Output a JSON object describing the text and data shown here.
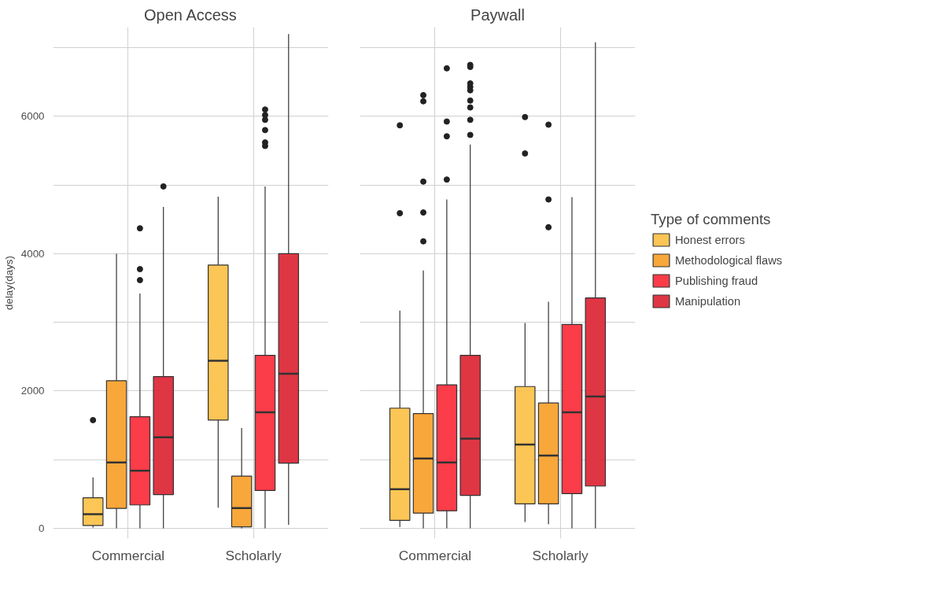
{
  "chart_data": [
    {
      "type": "box",
      "title": "Open Access",
      "ylabel": "delay(days)",
      "categories": [
        "Commercial",
        "Scholarly"
      ],
      "ylim": [
        -150,
        7300
      ],
      "yticks": [
        0,
        {
          "value": 1000,
          "label": null
        },
        2000,
        {
          "value": 3000,
          "label": null
        },
        4000,
        {
          "value": 5000,
          "label": null
        },
        6000,
        {
          "value": 7000,
          "label": null
        }
      ],
      "grid": true,
      "series": [
        {
          "color": "#fbc34c",
          "boxes": [
            {
              "low": 10,
              "q1": 40,
              "median": 206,
              "q3": 444,
              "high": 740,
              "outliers": [
                1576
              ]
            },
            {
              "low": 300,
              "q1": 1576,
              "median": 2440,
              "q3": 3835,
              "high": 4830
            }
          ]
        },
        {
          "color": "#f8a22f",
          "boxes": [
            {
              "low": 0,
              "q1": 290,
              "median": 960,
              "q3": 2150,
              "high": 4000
            },
            {
              "low": 0,
              "q1": 20,
              "median": 295,
              "q3": 760,
              "high": 1460
            }
          ]
        },
        {
          "color": "#fb323f",
          "boxes": [
            {
              "low": 0,
              "q1": 340,
              "median": 838,
              "q3": 1624,
              "high": 3420,
              "outliers": [
                3615,
                3775,
                4370
              ]
            },
            {
              "low": 0,
              "q1": 550,
              "median": 1690,
              "q3": 2520,
              "high": 4980,
              "outliers": [
                5570,
                5620,
                5800,
                5950,
                6020,
                6100
              ]
            }
          ]
        },
        {
          "color": "#dd2b3a",
          "boxes": [
            {
              "low": 0,
              "q1": 490,
              "median": 1325,
              "q3": 2210,
              "high": 4680,
              "outliers": [
                4980
              ]
            },
            {
              "low": 50,
              "q1": 950,
              "median": 2250,
              "q3": 4000,
              "high": 7200
            }
          ]
        }
      ]
    },
    {
      "type": "box",
      "title": "Paywall",
      "categories": [
        "Commercial",
        "Scholarly"
      ],
      "ylim": [
        -150,
        7300
      ],
      "yticks": [
        0,
        {
          "value": 1000,
          "label": null
        },
        2000,
        {
          "value": 3000,
          "label": null
        },
        4000,
        {
          "value": 5000,
          "label": null
        },
        6000,
        {
          "value": 7000,
          "label": null
        }
      ],
      "grid": true,
      "tick_labels": "x",
      "legend": "right",
      "legend_title": "Type of comments",
      "series": [
        {
          "name": "Honest errors",
          "color": "#fbc34c",
          "boxes": [
            {
              "low": 20,
              "q1": 115,
              "median": 570,
              "q3": 1750,
              "high": 3170,
              "outliers": [
                4590,
                5870
              ]
            },
            {
              "low": 90,
              "q1": 355,
              "median": 1220,
              "q3": 2065,
              "high": 2990,
              "outliers": [
                5460,
                5990
              ]
            }
          ]
        },
        {
          "name": "Methodological flaws",
          "color": "#f8a22f",
          "boxes": [
            {
              "low": 0,
              "q1": 220,
              "median": 1015,
              "q3": 1670,
              "high": 3755,
              "outliers": [
                4180,
                4600,
                5050,
                6220,
                6310
              ]
            },
            {
              "low": 60,
              "q1": 355,
              "median": 1060,
              "q3": 1825,
              "high": 3300,
              "outliers": [
                4385,
                4790,
                5880
              ]
            }
          ]
        },
        {
          "name": "Publishing fraud",
          "color": "#fb323f",
          "boxes": [
            {
              "low": 0,
              "q1": 255,
              "median": 960,
              "q3": 2090,
              "high": 4790,
              "outliers": [
                5080,
                5710,
                5925,
                6700
              ]
            },
            {
              "low": 0,
              "q1": 505,
              "median": 1690,
              "q3": 2970,
              "high": 4825
            }
          ]
        },
        {
          "name": "Manipulation",
          "color": "#dd2b3a",
          "boxes": [
            {
              "low": 0,
              "q1": 480,
              "median": 1305,
              "q3": 2520,
              "high": 5590,
              "outliers": [
                5730,
                5950,
                6130,
                6230,
                6380,
                6430,
                6480,
                6720,
                6750
              ]
            },
            {
              "low": 0,
              "q1": 615,
              "median": 1920,
              "q3": 3355,
              "high": 7080
            }
          ]
        }
      ]
    }
  ]
}
